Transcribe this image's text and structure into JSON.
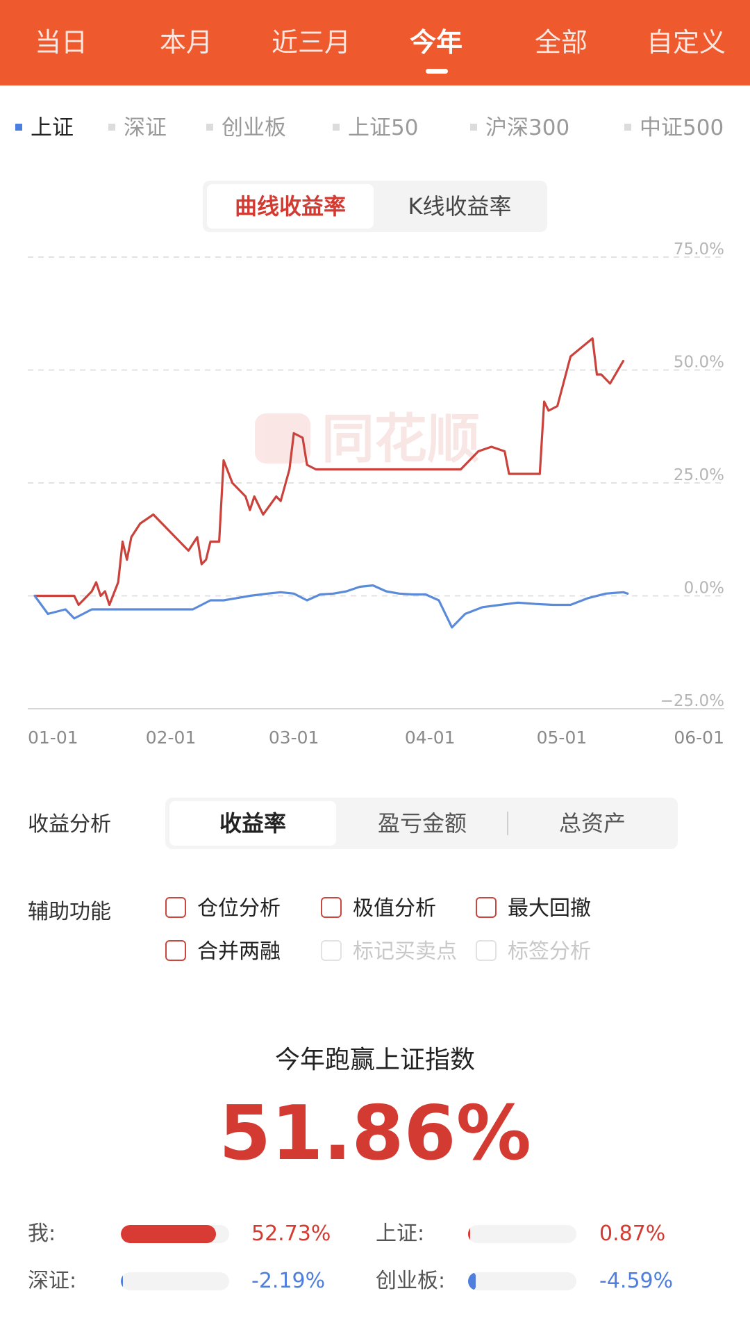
{
  "period_tabs": [
    {
      "label": "当日",
      "active": false
    },
    {
      "label": "本月",
      "active": false
    },
    {
      "label": "近三月",
      "active": false
    },
    {
      "label": "今年",
      "active": true
    },
    {
      "label": "全部",
      "active": false
    },
    {
      "label": "自定义",
      "active": false
    }
  ],
  "index_tabs": [
    {
      "label": "上证",
      "active": true
    },
    {
      "label": "深证",
      "active": false
    },
    {
      "label": "创业板",
      "active": false
    },
    {
      "label": "上证50",
      "active": false
    },
    {
      "label": "沪深300",
      "active": false
    },
    {
      "label": "中证500",
      "active": false
    }
  ],
  "chart_toggle": {
    "curve": "曲线收益率",
    "kline": "K线收益率",
    "active": "curve"
  },
  "watermark": "同花顺",
  "chart_data": {
    "type": "line",
    "y_tick_labels": [
      "75.0%",
      "50.0%",
      "25.0%",
      "0.0%",
      "−25.0%"
    ],
    "x_tick_labels": [
      "01-01",
      "02-01",
      "03-01",
      "04-01",
      "05-01",
      "06-01"
    ],
    "x_range": [
      "01-01",
      "06-01"
    ],
    "ylim": [
      -25,
      75
    ],
    "grid": "dashed horizontal",
    "series": [
      {
        "color": "#c9423b",
        "x": [
          "01-01",
          "01-10",
          "01-11",
          "01-14",
          "01-15",
          "01-16",
          "01-17",
          "01-18",
          "01-20",
          "01-21",
          "01-22",
          "01-23",
          "01-25",
          "01-28",
          "01-29",
          "02-05",
          "02-07",
          "02-08",
          "02-09",
          "02-10",
          "02-12",
          "02-13",
          "02-15",
          "02-18",
          "02-19",
          "02-20",
          "02-22",
          "02-25",
          "02-26",
          "02-28",
          "03-01",
          "03-03",
          "03-04",
          "03-06",
          "03-08",
          "03-10",
          "04-08",
          "04-12",
          "04-15",
          "04-18",
          "04-19",
          "04-25",
          "04-26",
          "04-27",
          "04-28",
          "04-30",
          "05-03",
          "05-08",
          "05-09",
          "05-10",
          "05-12",
          "05-15"
        ],
        "values": [
          0,
          0,
          -2,
          1,
          3,
          0,
          1,
          -2,
          3,
          12,
          8,
          13,
          16,
          18,
          17,
          10,
          13,
          7,
          8,
          12,
          12,
          30,
          25,
          22,
          19,
          22,
          18,
          22,
          21,
          28,
          36,
          35,
          29,
          28,
          28,
          28,
          28,
          32,
          33,
          32,
          27,
          27,
          27,
          43,
          41,
          42,
          53,
          57,
          49,
          49,
          47,
          52
        ]
      },
      {
        "color": "#5b8bd8",
        "x": [
          "01-01",
          "01-04",
          "01-08",
          "01-10",
          "01-12",
          "01-14",
          "01-16",
          "01-19",
          "01-23",
          "01-29",
          "01-31",
          "02-03",
          "02-06",
          "02-10",
          "02-13",
          "02-16",
          "02-19",
          "02-23",
          "02-26",
          "03-01",
          "03-04",
          "03-07",
          "03-10",
          "03-13",
          "03-16",
          "03-19",
          "03-22",
          "03-25",
          "03-28",
          "03-31",
          "04-03",
          "04-06",
          "04-09",
          "04-13",
          "04-17",
          "04-21",
          "04-25",
          "04-29",
          "05-03",
          "05-07",
          "05-11",
          "05-15",
          "05-16"
        ],
        "values": [
          0,
          -4,
          -3,
          -5,
          -4,
          -3,
          -3,
          -3,
          -3,
          -3,
          -3,
          -3,
          -3,
          -1,
          -1,
          -0.5,
          0,
          0.5,
          0.8,
          0.5,
          -1,
          0.3,
          0.5,
          1,
          2,
          2.3,
          1,
          0.5,
          0.3,
          0.3,
          -1,
          -7,
          -4,
          -2.5,
          -2,
          -1.5,
          -1.8,
          -2,
          -2,
          -0.5,
          0.5,
          0.8,
          0.5
        ]
      }
    ]
  },
  "analysis": {
    "label": "收益分析",
    "tabs": [
      "收益率",
      "盈亏金额",
      "总资产"
    ],
    "active": 0
  },
  "aux": {
    "label": "辅助功能",
    "options": [
      {
        "label": "仓位分析",
        "enabled": true
      },
      {
        "label": "极值分析",
        "enabled": true
      },
      {
        "label": "最大回撤",
        "enabled": true
      },
      {
        "label": "合并两融",
        "enabled": true
      },
      {
        "label": "标记买卖点",
        "enabled": false
      },
      {
        "label": "标签分析",
        "enabled": false
      }
    ]
  },
  "summary": {
    "title": "今年跑赢上证指数",
    "value": "51.86%",
    "comparisons": [
      {
        "label": "我:",
        "value": "52.73%",
        "percent": 52.73,
        "color": "#d83a34"
      },
      {
        "label": "上证:",
        "value": "0.87%",
        "percent": 0.87,
        "color": "#d83a34"
      },
      {
        "label": "深证:",
        "value": "-2.19%",
        "percent": -2.19,
        "color": "#4f7fdc"
      },
      {
        "label": "创业板:",
        "value": "-4.59%",
        "percent": -4.59,
        "color": "#4f7fdc"
      }
    ]
  }
}
